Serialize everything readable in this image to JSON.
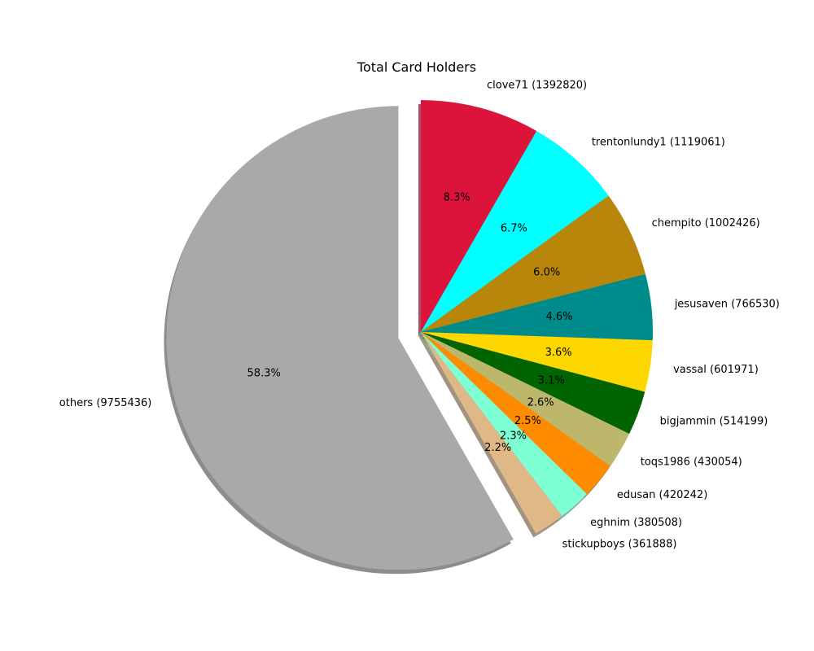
{
  "chart_data": {
    "type": "pie",
    "title": "Total Card Holders",
    "shadow": true,
    "start_angle_deg": 90,
    "direction": "clockwise",
    "slices": [
      {
        "name": "clove71",
        "value": 1392820,
        "label": "clove71 (1392820)",
        "pct_label": "8.3%",
        "color": "#DC143C",
        "explode": false
      },
      {
        "name": "trentonlundy1",
        "value": 1119061,
        "label": "trentonlundy1 (1119061)",
        "pct_label": "6.7%",
        "color": "#00FFFF",
        "explode": false
      },
      {
        "name": "chempito",
        "value": 1002426,
        "label": "chempito (1002426)",
        "pct_label": "6.0%",
        "color": "#B8860B",
        "explode": false
      },
      {
        "name": "jesusaven",
        "value": 766530,
        "label": "jesusaven (766530)",
        "pct_label": "4.6%",
        "color": "#008B8B",
        "explode": false
      },
      {
        "name": "vassal",
        "value": 601971,
        "label": "vassal (601971)",
        "pct_label": "3.6%",
        "color": "#FFD700",
        "explode": false
      },
      {
        "name": "bigjammin",
        "value": 514199,
        "label": "bigjammin (514199)",
        "pct_label": "3.1%",
        "color": "#006400",
        "explode": false
      },
      {
        "name": "toqs1986",
        "value": 430054,
        "label": "toqs1986 (430054)",
        "pct_label": "2.6%",
        "color": "#BDB76B",
        "explode": false
      },
      {
        "name": "edusan",
        "value": 420242,
        "label": "edusan (420242)",
        "pct_label": "2.5%",
        "color": "#FF8C00",
        "explode": false
      },
      {
        "name": "eghnim",
        "value": 380508,
        "label": "eghnim (380508)",
        "pct_label": "2.3%",
        "color": "#7FFFD4",
        "explode": false
      },
      {
        "name": "stickupboys",
        "value": 361888,
        "label": "stickupboys (361888)",
        "pct_label": "2.2%",
        "color": "#DEB887",
        "explode": false
      },
      {
        "name": "others",
        "value": 9755436,
        "label": "others (9755436)",
        "pct_label": "58.3%",
        "color": "#A9A9A9",
        "explode": true
      }
    ]
  }
}
